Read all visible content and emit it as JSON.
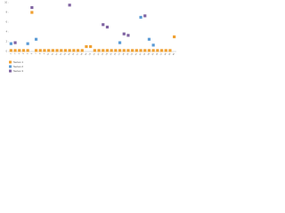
{
  "chart_data": {
    "type": "scatter",
    "categories": [
      "1",
      "2",
      "3",
      "4",
      "5",
      "6",
      "7",
      "8",
      "9",
      "10",
      "11",
      "12",
      "13",
      "14",
      "15",
      "16",
      "17",
      "18",
      "19",
      "20",
      "21",
      "22",
      "23",
      "24",
      "25",
      "26",
      "27",
      "28",
      "29",
      "30",
      "31",
      "32",
      "33",
      "34",
      "35",
      "36",
      "37",
      "38",
      "39",
      "40"
    ],
    "ylim": [
      0,
      10
    ],
    "yticks": [
      0,
      2,
      4,
      6,
      8,
      10
    ],
    "grid": false,
    "legend": "bottom-left",
    "series": [
      {
        "name": "Series 1",
        "color": "#f0a030",
        "values": [
          0.2,
          0.2,
          0.2,
          0.2,
          0.2,
          8,
          0.2,
          0.2,
          0.2,
          0.2,
          0.2,
          0.2,
          0.2,
          0.2,
          0.2,
          0.2,
          0.2,
          0.2,
          1,
          1,
          0.2,
          0.2,
          0.2,
          0.2,
          0.2,
          0.2,
          0.2,
          0.2,
          0.2,
          0.2,
          0.2,
          0.2,
          0.2,
          0.2,
          0.2,
          0.2,
          0.2,
          0.2,
          0.2,
          3
        ]
      },
      {
        "name": "Series 2",
        "color": "#5b9bd5",
        "values": [
          1.6,
          null,
          null,
          null,
          1.6,
          null,
          2.5,
          null,
          null,
          null,
          null,
          null,
          null,
          null,
          null,
          null,
          null,
          null,
          null,
          null,
          null,
          null,
          null,
          null,
          null,
          null,
          1.8,
          null,
          null,
          null,
          null,
          7,
          null,
          2.5,
          1.3,
          null,
          null,
          null,
          null,
          null
        ]
      },
      {
        "name": "Series 3",
        "color": "#8064a2",
        "values": [
          null,
          1.8,
          null,
          null,
          null,
          9,
          null,
          null,
          null,
          null,
          null,
          null,
          null,
          null,
          9.5,
          null,
          null,
          null,
          null,
          null,
          null,
          null,
          5.5,
          5,
          null,
          null,
          null,
          3.6,
          3.3,
          null,
          null,
          null,
          7.3,
          null,
          null,
          null,
          null,
          null,
          null,
          null
        ]
      }
    ]
  }
}
